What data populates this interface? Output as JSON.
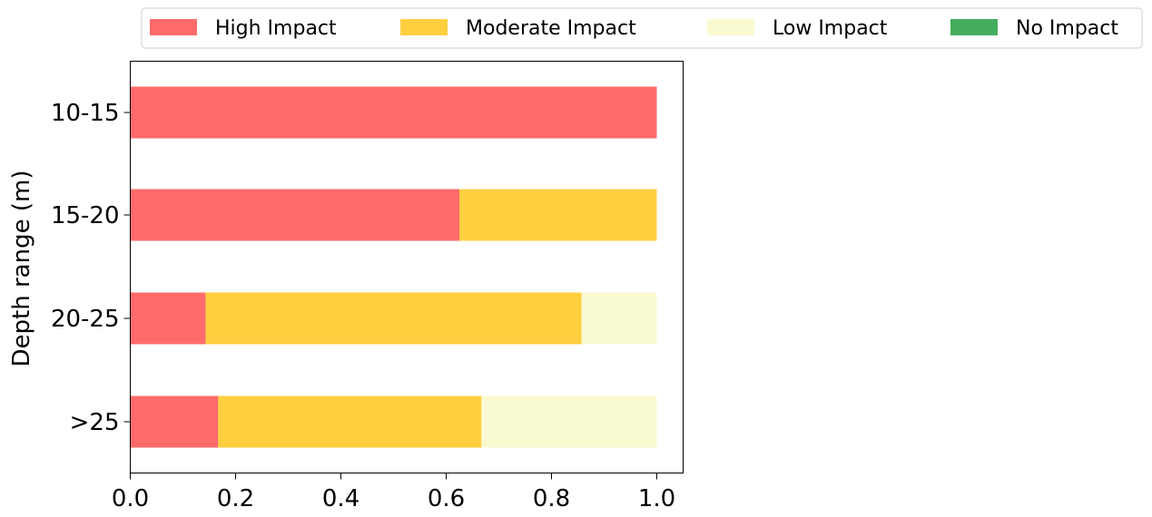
{
  "chart_data": {
    "type": "bar",
    "orientation": "horizontal",
    "stacked": true,
    "ylabel": "Depth range (m)",
    "xlabel": "",
    "xlim": [
      0,
      1.05
    ],
    "xticks": [
      "0.0",
      "0.2",
      "0.4",
      "0.6",
      "0.8",
      "1.0"
    ],
    "categories": [
      "10-15",
      "15-20",
      "20-25",
      ">25"
    ],
    "legend_position": "top, outside plot",
    "grid": false,
    "series": [
      {
        "name": "High Impact",
        "color": "#ff6b6b",
        "values": [
          1.0,
          0.625,
          0.143,
          0.167
        ]
      },
      {
        "name": "Moderate Impact",
        "color": "#ffcf40",
        "values": [
          0.0,
          0.375,
          0.714,
          0.5
        ]
      },
      {
        "name": "Low Impact",
        "color": "#fafad2",
        "values": [
          0.0,
          0.0,
          0.143,
          0.333
        ]
      },
      {
        "name": "No Impact",
        "color": "#44ad5d",
        "values": [
          0.0,
          0.0,
          0.0,
          0.0
        ]
      }
    ]
  }
}
